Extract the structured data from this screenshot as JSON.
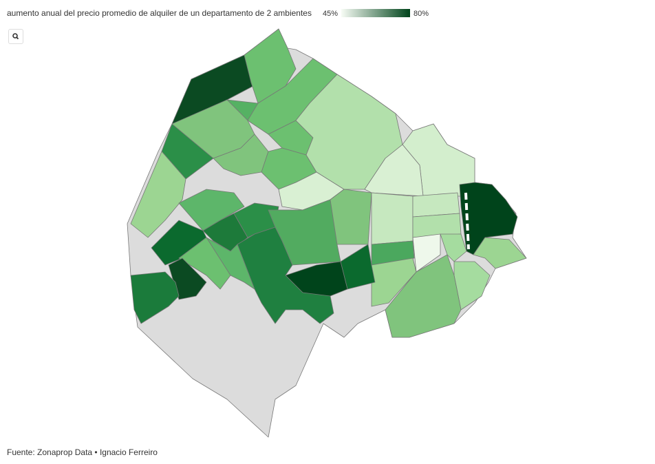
{
  "title": "aumento anual del precio promedio de alquiler de un departamento de 2 ambientes",
  "legend": {
    "ticks": [
      {
        "value": 45,
        "label": "45%"
      },
      {
        "value": 80,
        "label": "80%"
      }
    ],
    "colors": [
      "#f7fcf5",
      "#00441b"
    ]
  },
  "source": "Fuente: Zonaprop Data • Ignacio Ferreiro"
}
